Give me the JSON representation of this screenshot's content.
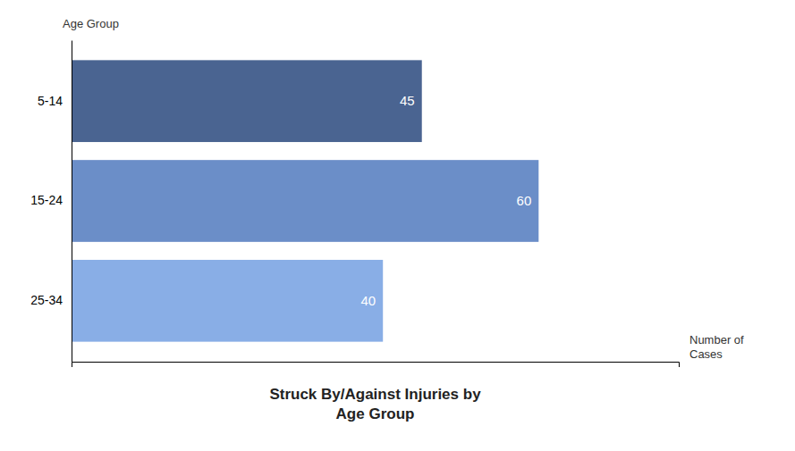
{
  "chart_data": {
    "type": "bar",
    "orientation": "horizontal",
    "title": "Struck By/Against Injuries by\nAge Group",
    "xlabel": "Number of\nCases",
    "ylabel": "Age Group",
    "categories": [
      "5-14",
      "15-24",
      "25-34"
    ],
    "values": [
      45,
      60,
      40
    ],
    "colors": [
      "#4a6491",
      "#6b8ec8",
      "#89aee6"
    ],
    "xlim": [
      0,
      78
    ],
    "data_labels": true,
    "tick_labels": "y"
  }
}
